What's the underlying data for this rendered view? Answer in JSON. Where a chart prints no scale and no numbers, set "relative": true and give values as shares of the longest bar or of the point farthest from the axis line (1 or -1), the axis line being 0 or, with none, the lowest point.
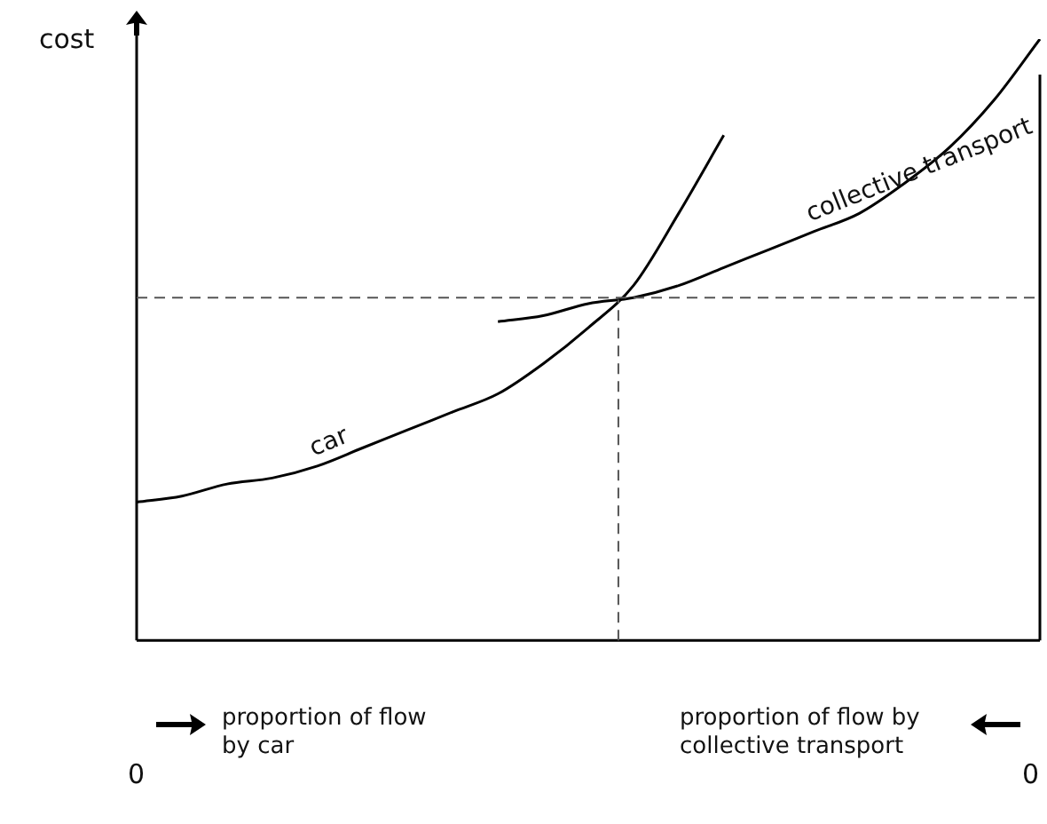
{
  "chart_data": {
    "type": "line",
    "relative": true,
    "ylabel": "cost",
    "xlabel": "proportion of flow by car",
    "annotations": [
      "proportion of flow by collective transport",
      "0",
      "0"
    ],
    "categories": [
      null,
      null,
      null,
      null,
      null,
      null,
      null,
      null,
      null,
      null,
      null,
      null,
      null,
      null,
      null,
      null,
      null,
      null,
      null,
      null,
      null
    ],
    "grid": false,
    "legend": false,
    "marker": "none",
    "line_style": "solid",
    "series": [
      {
        "name": "car",
        "color": "#000000",
        "values": [
          0.23,
          0.24,
          0.26,
          0.27,
          0.29,
          0.32,
          0.35,
          0.38,
          0.41,
          0.46,
          0.52,
          0.59,
          0.71,
          0.84,
          null,
          null,
          null,
          null,
          null,
          null,
          null
        ]
      },
      {
        "name": "collective transport",
        "color": "#000000",
        "values": [
          null,
          null,
          null,
          null,
          null,
          null,
          null,
          null,
          0.53,
          0.54,
          0.56,
          0.57,
          0.59,
          0.62,
          0.65,
          0.68,
          0.71,
          0.76,
          0.82,
          0.9,
          1
        ]
      }
    ],
    "ref_lines": [
      {
        "axis": "y",
        "value": 0.57,
        "color": "#555555",
        "line_style": "dashed"
      }
    ]
  }
}
